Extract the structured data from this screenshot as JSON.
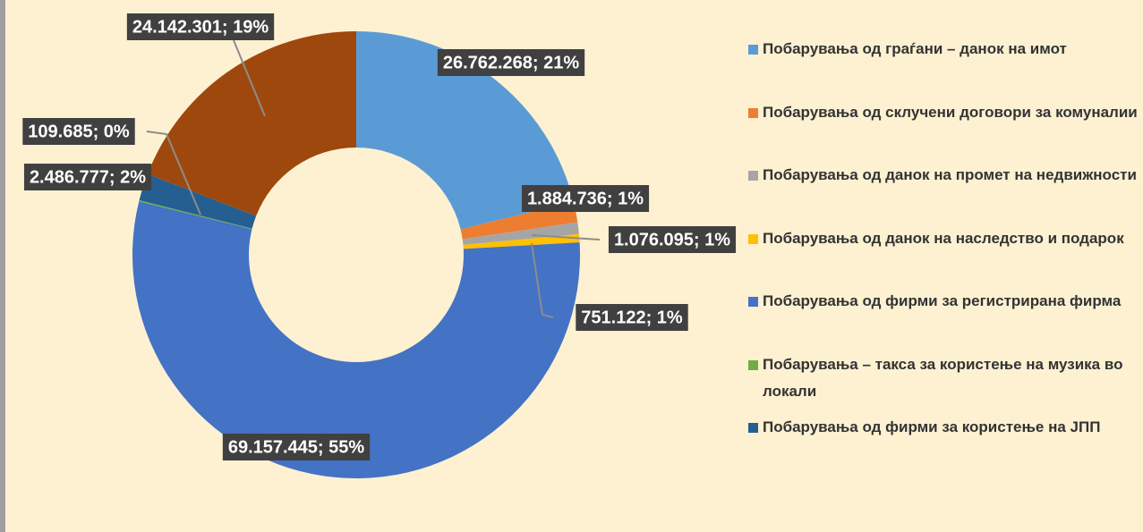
{
  "chart_data": {
    "type": "donut",
    "categories": [
      "Побарувања од граѓани – данок на имот",
      "Побарувања од склучени договори за комуналии",
      "Побарувања од данок на промет на недвижности",
      "Побарувања од данок на наследство и подарок",
      "Побарувања од фирми за регистрирана фирма",
      "Побарувања – такса за користење на музика во локали",
      "Побарувања од фирми за користење на ЈПП",
      null
    ],
    "values": [
      26762268,
      1884736,
      1076095,
      751122,
      69157445,
      109685,
      2486777,
      24142301
    ],
    "value_labels": [
      "26.762.268; 21%",
      "1.884.736; 1%",
      "1.076.095; 1%",
      "751.122; 1%",
      "69.157.445; 55%",
      "109.685; 0%",
      "2.486.777; 2%",
      "24.142.301; 19%"
    ],
    "colors": [
      "#5b9bd5",
      "#ed7d31",
      "#a5a5a5",
      "#ffc000",
      "#4472c4",
      "#70ad47",
      "#255e91",
      "#9e480e"
    ],
    "legend": "right"
  }
}
